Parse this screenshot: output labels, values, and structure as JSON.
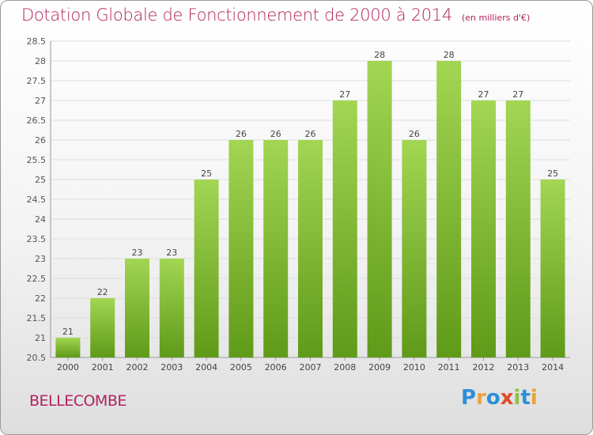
{
  "chart_data": {
    "type": "bar",
    "title": "Dotation Globale de Fonctionnement de 2000 à 2014",
    "unit": "(en milliers d'€)",
    "categories": [
      "2000",
      "2001",
      "2002",
      "2003",
      "2004",
      "2005",
      "2006",
      "2007",
      "2008",
      "2009",
      "2010",
      "2011",
      "2012",
      "2013",
      "2014"
    ],
    "values": [
      21,
      22,
      23,
      23,
      25,
      26,
      26,
      26,
      27,
      28,
      26,
      28,
      27,
      27,
      25
    ],
    "ylim": [
      20.5,
      28.5
    ],
    "yticks": [
      "20.5",
      "21",
      "21.5",
      "22",
      "22.5",
      "23",
      "23.5",
      "24",
      "24.5",
      "25",
      "25.5",
      "26",
      "26.5",
      "27",
      "27.5",
      "28",
      "28.5"
    ],
    "grid": true,
    "bar_color": "#8cc63f"
  },
  "commune": "BELLECOMBE",
  "logo": "Proxiti"
}
